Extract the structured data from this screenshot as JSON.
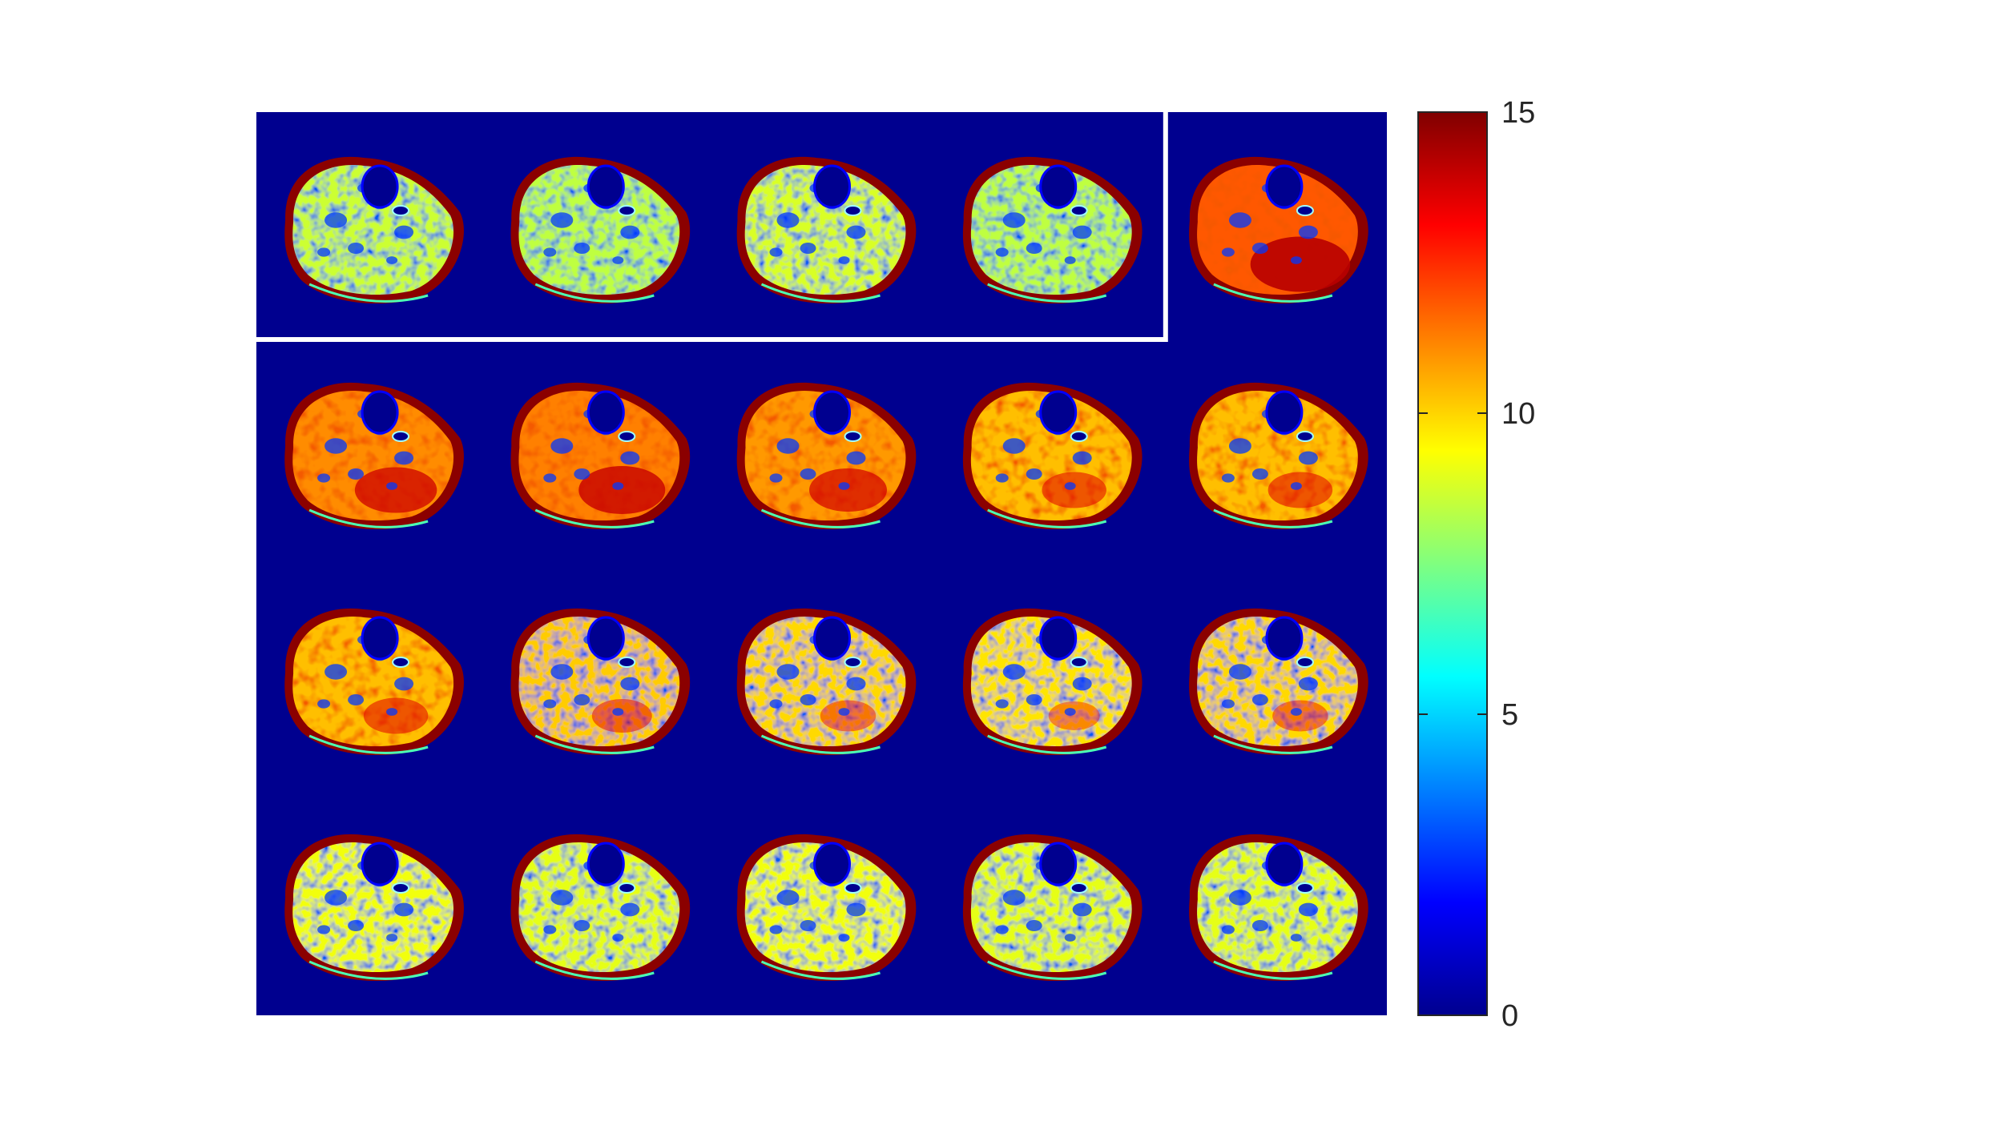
{
  "figure": {
    "background_color": "#ffffff",
    "montage_background_color": "#00008f",
    "highlight_box_color": "#ffffff"
  },
  "montage": {
    "rows": 4,
    "cols": 5,
    "highlighted": {
      "row": 0,
      "col_start": 0,
      "col_end": 3
    },
    "tiles": [
      {
        "row": 0,
        "col": 0,
        "hot": 0.1
      },
      {
        "row": 0,
        "col": 1,
        "hot": 0.05
      },
      {
        "row": 0,
        "col": 2,
        "hot": 0.15
      },
      {
        "row": 0,
        "col": 3,
        "hot": 0.05
      },
      {
        "row": 0,
        "col": 4,
        "hot": 0.95
      },
      {
        "row": 1,
        "col": 0,
        "hot": 0.75
      },
      {
        "row": 1,
        "col": 1,
        "hot": 0.8
      },
      {
        "row": 1,
        "col": 2,
        "hot": 0.7
      },
      {
        "row": 1,
        "col": 3,
        "hot": 0.55
      },
      {
        "row": 1,
        "col": 4,
        "hot": 0.55
      },
      {
        "row": 2,
        "col": 0,
        "hot": 0.55
      },
      {
        "row": 2,
        "col": 1,
        "hot": 0.5
      },
      {
        "row": 2,
        "col": 2,
        "hot": 0.45
      },
      {
        "row": 2,
        "col": 3,
        "hot": 0.4
      },
      {
        "row": 2,
        "col": 4,
        "hot": 0.45
      },
      {
        "row": 3,
        "col": 0,
        "hot": 0.25
      },
      {
        "row": 3,
        "col": 1,
        "hot": 0.2
      },
      {
        "row": 3,
        "col": 2,
        "hot": 0.25
      },
      {
        "row": 3,
        "col": 3,
        "hot": 0.2
      },
      {
        "row": 3,
        "col": 4,
        "hot": 0.2
      }
    ]
  },
  "colorbar": {
    "colormap": "jet",
    "min": 0,
    "max": 15,
    "ticks": [
      {
        "value": 0,
        "label": "0"
      },
      {
        "value": 5,
        "label": "5"
      },
      {
        "value": 10,
        "label": "10"
      },
      {
        "value": 15,
        "label": "15"
      }
    ]
  }
}
